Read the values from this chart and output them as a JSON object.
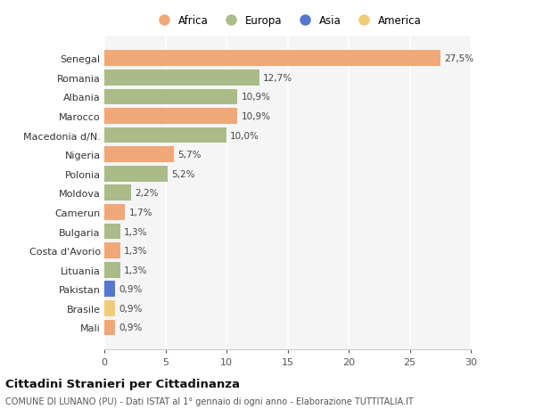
{
  "categories": [
    "Senegal",
    "Romania",
    "Albania",
    "Marocco",
    "Macedonia d/N.",
    "Nigeria",
    "Polonia",
    "Moldova",
    "Camerun",
    "Bulgaria",
    "Costa d'Avorio",
    "Lituania",
    "Pakistan",
    "Brasile",
    "Mali"
  ],
  "values": [
    27.5,
    12.7,
    10.9,
    10.9,
    10.0,
    5.7,
    5.2,
    2.2,
    1.7,
    1.3,
    1.3,
    1.3,
    0.9,
    0.9,
    0.9
  ],
  "labels": [
    "27,5%",
    "12,7%",
    "10,9%",
    "10,9%",
    "10,0%",
    "5,7%",
    "5,2%",
    "2,2%",
    "1,7%",
    "1,3%",
    "1,3%",
    "1,3%",
    "0,9%",
    "0,9%",
    "0,9%"
  ],
  "continents": [
    "Africa",
    "Europa",
    "Europa",
    "Africa",
    "Europa",
    "Africa",
    "Europa",
    "Europa",
    "Africa",
    "Europa",
    "Africa",
    "Europa",
    "Asia",
    "America",
    "Africa"
  ],
  "colors": {
    "Africa": "#F0A878",
    "Europa": "#AABB88",
    "Asia": "#5577CC",
    "America": "#F0CC78"
  },
  "legend_items": [
    "Africa",
    "Europa",
    "Asia",
    "America"
  ],
  "title": "Cittadini Stranieri per Cittadinanza",
  "subtitle": "COMUNE DI LUNANO (PU) - Dati ISTAT al 1° gennaio di ogni anno - Elaborazione TUTTITALIA.IT",
  "xlim": [
    0,
    30
  ],
  "xticks": [
    0,
    5,
    10,
    15,
    20,
    25,
    30
  ],
  "background_color": "#ffffff",
  "bar_background": "#f5f5f5",
  "grid_color": "#ffffff"
}
